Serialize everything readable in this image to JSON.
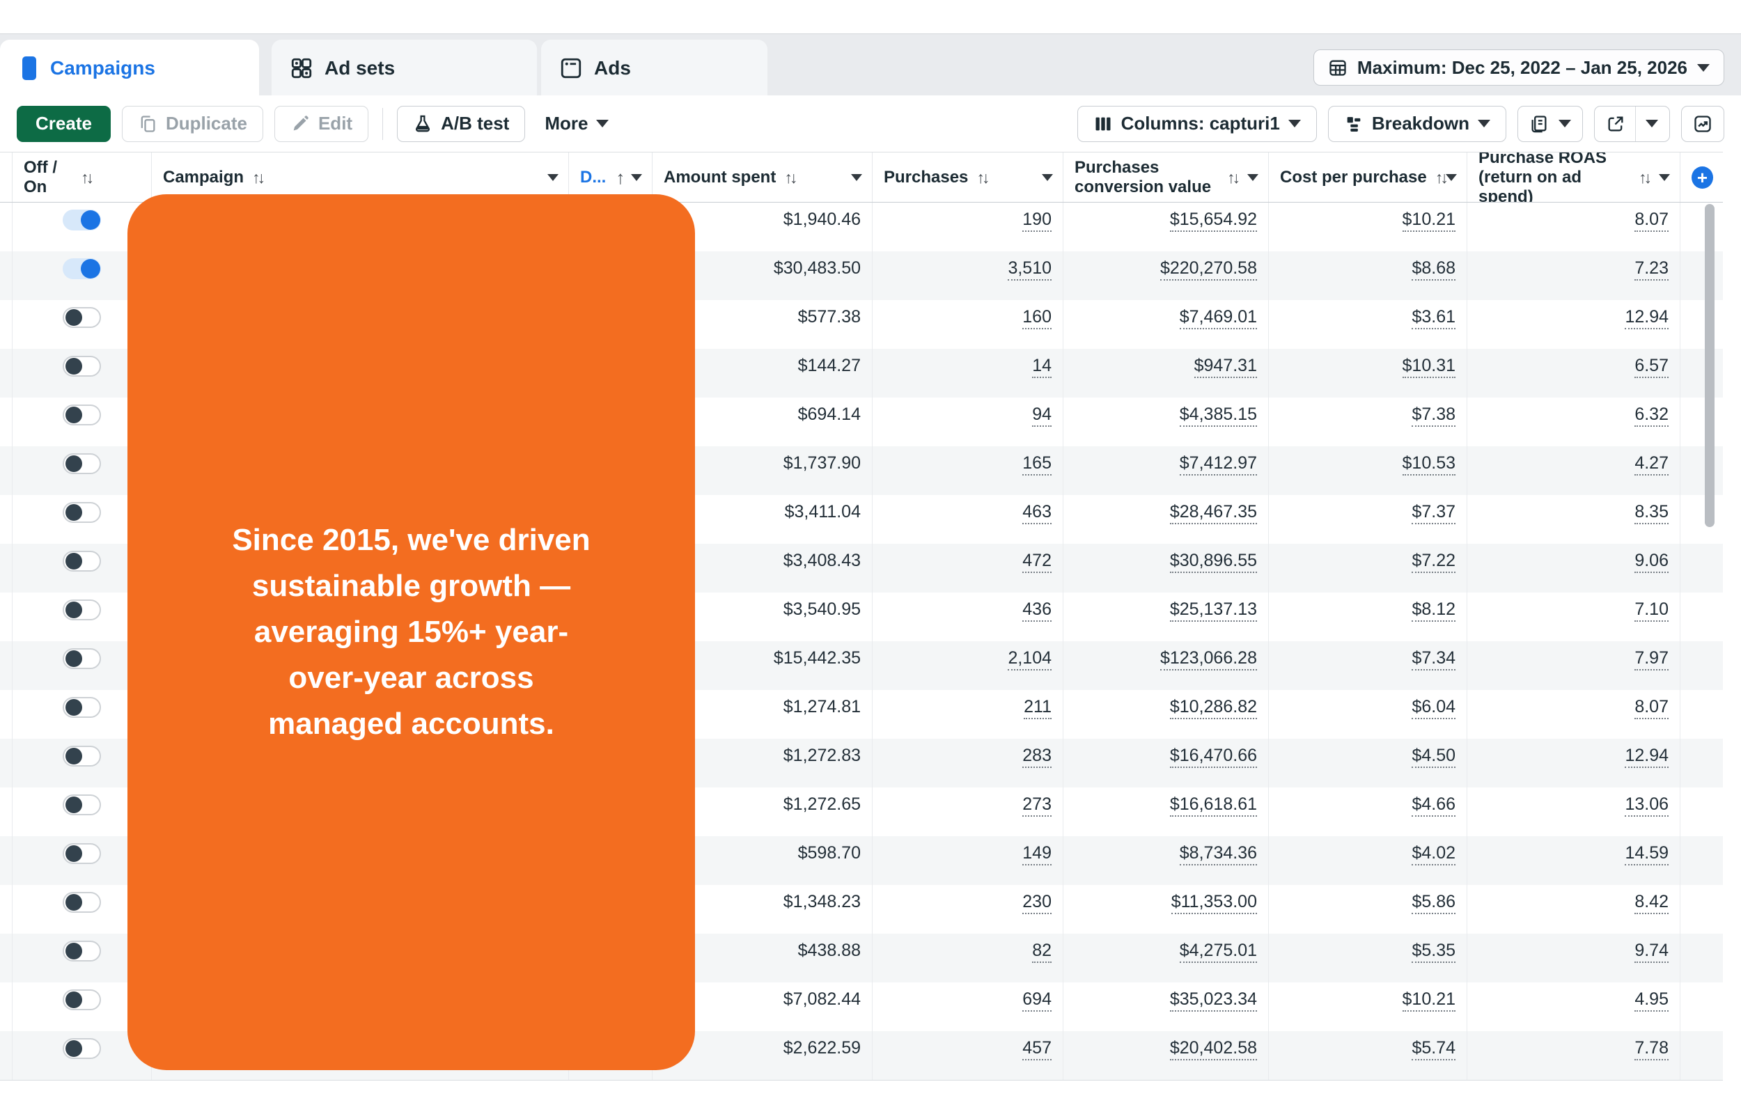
{
  "tabs": {
    "items": [
      {
        "label": "Campaigns",
        "active": true
      },
      {
        "label": "Ad sets",
        "active": false
      },
      {
        "label": "Ads",
        "active": false
      }
    ]
  },
  "date_filter": {
    "label": "Maximum: Dec 25, 2022 – Jan 25, 2026"
  },
  "toolbar": {
    "create": "Create",
    "duplicate": "Duplicate",
    "edit": "Edit",
    "ab_test": "A/B test",
    "more": "More",
    "columns": "Columns: capturi1",
    "breakdown": "Breakdown"
  },
  "overlay": {
    "color": "#f36d20",
    "text": "Since 2015, we've driven sustainable growth — averaging 15%+ year-over-year across managed accounts.",
    "lines": [
      "Since 2015, we've driven",
      "sustainable growth —",
      "averaging 15%+ year-",
      "over-year across",
      "managed accounts."
    ]
  },
  "table": {
    "headers": {
      "off_on": "Off / On",
      "campaign": "Campaign",
      "delivery": "D...",
      "amount_spent": "Amount spent",
      "purchases": "Purchases",
      "conversion_value": "Purchases conversion value",
      "cost_per_purchase": "Cost per purchase",
      "roas": "Purchase ROAS (return on ad spend)"
    },
    "rows": [
      {
        "on": true,
        "amount_spent": "$1,940.46",
        "purchases": "190",
        "conversion_value": "$15,654.92",
        "cost_per_purchase": "$10.21",
        "roas": "8.07"
      },
      {
        "on": true,
        "amount_spent": "$30,483.50",
        "purchases": "3,510",
        "conversion_value": "$220,270.58",
        "cost_per_purchase": "$8.68",
        "roas": "7.23"
      },
      {
        "on": false,
        "amount_spent": "$577.38",
        "purchases": "160",
        "conversion_value": "$7,469.01",
        "cost_per_purchase": "$3.61",
        "roas": "12.94"
      },
      {
        "on": false,
        "amount_spent": "$144.27",
        "purchases": "14",
        "conversion_value": "$947.31",
        "cost_per_purchase": "$10.31",
        "roas": "6.57"
      },
      {
        "on": false,
        "amount_spent": "$694.14",
        "purchases": "94",
        "conversion_value": "$4,385.15",
        "cost_per_purchase": "$7.38",
        "roas": "6.32"
      },
      {
        "on": false,
        "amount_spent": "$1,737.90",
        "purchases": "165",
        "conversion_value": "$7,412.97",
        "cost_per_purchase": "$10.53",
        "roas": "4.27"
      },
      {
        "on": false,
        "amount_spent": "$3,411.04",
        "purchases": "463",
        "conversion_value": "$28,467.35",
        "cost_per_purchase": "$7.37",
        "roas": "8.35"
      },
      {
        "on": false,
        "amount_spent": "$3,408.43",
        "purchases": "472",
        "conversion_value": "$30,896.55",
        "cost_per_purchase": "$7.22",
        "roas": "9.06"
      },
      {
        "on": false,
        "amount_spent": "$3,540.95",
        "purchases": "436",
        "conversion_value": "$25,137.13",
        "cost_per_purchase": "$8.12",
        "roas": "7.10"
      },
      {
        "on": false,
        "amount_spent": "$15,442.35",
        "purchases": "2,104",
        "conversion_value": "$123,066.28",
        "cost_per_purchase": "$7.34",
        "roas": "7.97"
      },
      {
        "on": false,
        "amount_spent": "$1,274.81",
        "purchases": "211",
        "conversion_value": "$10,286.82",
        "cost_per_purchase": "$6.04",
        "roas": "8.07"
      },
      {
        "on": false,
        "amount_spent": "$1,272.83",
        "purchases": "283",
        "conversion_value": "$16,470.66",
        "cost_per_purchase": "$4.50",
        "roas": "12.94"
      },
      {
        "on": false,
        "amount_spent": "$1,272.65",
        "purchases": "273",
        "conversion_value": "$16,618.61",
        "cost_per_purchase": "$4.66",
        "roas": "13.06"
      },
      {
        "on": false,
        "amount_spent": "$598.70",
        "purchases": "149",
        "conversion_value": "$8,734.36",
        "cost_per_purchase": "$4.02",
        "roas": "14.59"
      },
      {
        "on": false,
        "amount_spent": "$1,348.23",
        "purchases": "230",
        "conversion_value": "$11,353.00",
        "cost_per_purchase": "$5.86",
        "roas": "8.42"
      },
      {
        "on": false,
        "amount_spent": "$438.88",
        "purchases": "82",
        "conversion_value": "$4,275.01",
        "cost_per_purchase": "$5.35",
        "roas": "9.74"
      },
      {
        "on": false,
        "amount_spent": "$7,082.44",
        "purchases": "694",
        "conversion_value": "$35,023.34",
        "cost_per_purchase": "$10.21",
        "roas": "4.95"
      },
      {
        "on": false,
        "amount_spent": "$2,622.59",
        "purchases": "457",
        "conversion_value": "$20,402.58",
        "cost_per_purchase": "$5.74",
        "roas": "7.78"
      }
    ]
  },
  "colors": {
    "accent_blue": "#1b74e4",
    "create_green": "#0d6b45",
    "orange": "#f36d20",
    "row_alt": "#f4f6f7"
  }
}
